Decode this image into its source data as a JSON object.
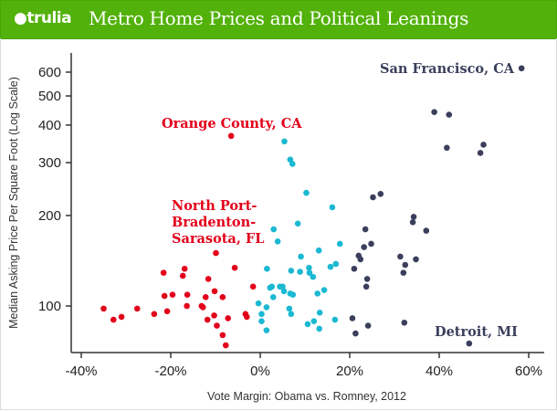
{
  "header": {
    "logo_text": "trulia",
    "title": "Metro Home Prices and Political Leanings",
    "bg_color": "#52b10a"
  },
  "chart_data": {
    "type": "scatter",
    "title": "Metro Home Prices and Political Leanings",
    "xlabel": "Vote Margin: Obama vs. Romney, 2012",
    "ylabel": "Median Asking Price Per Square Foot (Log Scale)",
    "xlim": [
      -42,
      62
    ],
    "ylim": [
      68,
      660
    ],
    "y_scale": "log",
    "grid": false,
    "x_ticks": [
      -40,
      -20,
      0,
      20,
      40,
      60
    ],
    "x_tick_labels": [
      "-40%",
      "-20%",
      "0%",
      "20%",
      "40%",
      "60%"
    ],
    "y_ticks": [
      100,
      200,
      300,
      400,
      500,
      600
    ],
    "y_tick_labels": [
      "100",
      "200",
      "300",
      "400",
      "500",
      "600"
    ],
    "series": [
      {
        "color": "#e2001a",
        "points": [
          [
            -35.0,
            98
          ],
          [
            -32.8,
            90
          ],
          [
            -31.0,
            92
          ],
          [
            -27.5,
            98
          ],
          [
            -23.7,
            94
          ],
          [
            -21.6,
            129
          ],
          [
            -21.4,
            108
          ],
          [
            -20.8,
            96
          ],
          [
            -19.6,
            109
          ],
          [
            -16.9,
            133
          ],
          [
            -17.3,
            126
          ],
          [
            -16.3,
            109
          ],
          [
            -16.4,
            100
          ],
          [
            -13.1,
            100
          ],
          [
            -12.8,
            99
          ],
          [
            -12.2,
            107
          ],
          [
            -11.6,
            123
          ],
          [
            -11.8,
            90
          ],
          [
            -10.2,
            112
          ],
          [
            -10.3,
            93
          ],
          [
            -9.7,
            86
          ],
          [
            -9.9,
            150
          ],
          [
            -8.4,
            107
          ],
          [
            -7.2,
            91
          ],
          [
            -8.4,
            80
          ],
          [
            -7.7,
            74
          ],
          [
            -5.7,
            134
          ],
          [
            -3.3,
            94
          ],
          [
            -3.0,
            92
          ],
          [
            -1.6,
            116
          ],
          [
            -6.5,
            368
          ]
        ]
      },
      {
        "color": "#1bb8d2",
        "points": [
          [
            5.4,
            353
          ],
          [
            6.7,
            307
          ],
          [
            7.2,
            297
          ],
          [
            10.3,
            238
          ],
          [
            16.1,
            213
          ],
          [
            8.4,
            188
          ],
          [
            3.0,
            180
          ],
          [
            3.9,
            164
          ],
          [
            17.8,
            161
          ],
          [
            13.1,
            153
          ],
          [
            9.1,
            146
          ],
          [
            1.5,
            133
          ],
          [
            6.9,
            131
          ],
          [
            8.9,
            130
          ],
          [
            10.9,
            134
          ],
          [
            11.0,
            129
          ],
          [
            11.8,
            125
          ],
          [
            15.7,
            135
          ],
          [
            16.9,
            138
          ],
          [
            2.2,
            115
          ],
          [
            2.6,
            116
          ],
          [
            4.4,
            116
          ],
          [
            5.0,
            116
          ],
          [
            5.3,
            112
          ],
          [
            6.7,
            110
          ],
          [
            7.3,
            109
          ],
          [
            2.9,
            107
          ],
          [
            12.8,
            110
          ],
          [
            14.3,
            113
          ],
          [
            -0.4,
            102
          ],
          [
            1.4,
            99
          ],
          [
            0.3,
            94
          ],
          [
            6.5,
            98
          ],
          [
            6.9,
            94
          ],
          [
            0.3,
            89
          ],
          [
            1.4,
            83
          ],
          [
            13.3,
            95
          ],
          [
            10.6,
            87
          ],
          [
            12.0,
            89
          ],
          [
            13.2,
            84
          ],
          [
            16.7,
            90
          ]
        ]
      },
      {
        "color": "#3b3f5c",
        "points": [
          [
            58.4,
            618
          ],
          [
            38.9,
            442
          ],
          [
            42.2,
            433
          ],
          [
            41.7,
            336
          ],
          [
            49.9,
            344
          ],
          [
            49.2,
            323
          ],
          [
            25.2,
            230
          ],
          [
            26.9,
            236
          ],
          [
            34.3,
            198
          ],
          [
            34.1,
            190
          ],
          [
            37.1,
            178
          ],
          [
            23.5,
            180
          ],
          [
            24.8,
            161
          ],
          [
            23.2,
            157
          ],
          [
            22.0,
            147
          ],
          [
            22.4,
            143
          ],
          [
            21.0,
            133
          ],
          [
            31.3,
            146
          ],
          [
            34.8,
            143
          ],
          [
            32.4,
            137
          ],
          [
            32.0,
            129
          ],
          [
            23.9,
            123
          ],
          [
            23.7,
            116
          ],
          [
            20.6,
            91
          ],
          [
            24.1,
            86
          ],
          [
            21.3,
            81
          ],
          [
            32.2,
            88
          ],
          [
            46.7,
            75
          ]
        ]
      }
    ],
    "annotations": [
      {
        "text": "San Francisco, CA",
        "color": "#3b3f5c"
      },
      {
        "text": "Orange County, CA",
        "color": "#e2001a"
      },
      {
        "text": [
          "North Port-",
          "Bradenton-",
          "Sarasota, FL"
        ],
        "color": "#e2001a"
      },
      {
        "text": "Detroit, MI",
        "color": "#3b3f5c"
      }
    ]
  }
}
